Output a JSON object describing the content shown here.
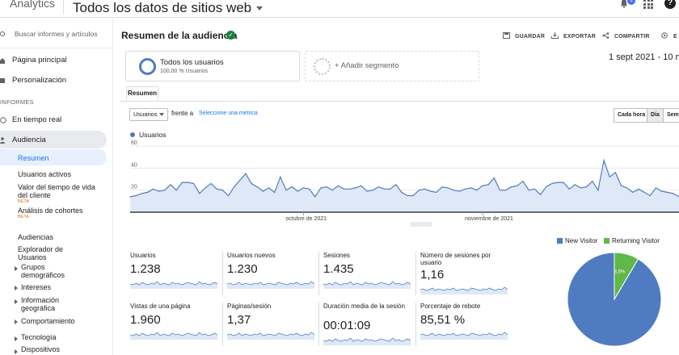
{
  "topbar": {
    "app_name": "Analytics",
    "property": "Todos los datos de sitios web",
    "notification_count": "1",
    "help_symbol": "?"
  },
  "sidebar": {
    "search_placeholder": "Buscar informes y artículos",
    "home": "Página principal",
    "customization": "Personalización",
    "section_reports": "INFORMES",
    "realtime": "En tiempo real",
    "audience": "Audiencia",
    "sub_items": {
      "overview": "Resumen",
      "active_users": "Usuarios activos",
      "lifetime_value": "Valor del tiempo de vida del cliente",
      "cohort": "Análisis de cohortes",
      "audiences": "Audiencias",
      "user_explorer": "Explorador de Usuarios",
      "demographics": "Grupos demográficos",
      "interests": "Intereses",
      "geo": "Información geográfica",
      "behavior": "Comportamiento",
      "technology": "Tecnología",
      "devices": "Dispositivos"
    },
    "beta_label": "BETA"
  },
  "header": {
    "title": "Resumen de la audiencia",
    "save": "GUARDAR",
    "export": "EXPORTAR",
    "share": "COMPARTIR",
    "insights": "E",
    "date_range": "1 sept 2021 - 10 nov"
  },
  "segments": {
    "all_users_title": "Todos los usuarios",
    "all_users_sub": "100,00 % Usuarios",
    "add_segment": "+ Añadir segmento"
  },
  "tabs": {
    "overview": "Resumen"
  },
  "controls": {
    "metric": "Usuarios",
    "versus": "frente a",
    "select_metric": "Seleccione una métrica",
    "granularity": [
      "Cada hora",
      "Día",
      "Sema"
    ],
    "granularity_selected": "Día"
  },
  "chart_data": {
    "type": "line",
    "series": [
      {
        "name": "Usuarios",
        "values": [
          14,
          15,
          17,
          18,
          21,
          19,
          20,
          25,
          20,
          27,
          27,
          26,
          17,
          22,
          26,
          21,
          20,
          15,
          23,
          29,
          35,
          26,
          23,
          19,
          22,
          18,
          32,
          20,
          23,
          19,
          22,
          21,
          14,
          22,
          23,
          20,
          24,
          21,
          21,
          22,
          24,
          19,
          20,
          23,
          21,
          21,
          25,
          18,
          15,
          15,
          20,
          21,
          19,
          18,
          23,
          22,
          20,
          19,
          21,
          22,
          20,
          24,
          25,
          31,
          20,
          20,
          23,
          24,
          28,
          20,
          21,
          16,
          23,
          26,
          27,
          27,
          21,
          25,
          22,
          23,
          28,
          20,
          47,
          32,
          36,
          24,
          22,
          18,
          21,
          18,
          15,
          22,
          19,
          18,
          17,
          14
        ]
      }
    ],
    "y_ticks": [
      "60",
      "40",
      "20"
    ],
    "ylim": [
      0,
      60
    ],
    "x_tick_labels": [
      "octubre de 2021",
      "noviembre de 2021"
    ],
    "color": "#4f7cc0"
  },
  "scorecards": [
    {
      "label": "Usuarios",
      "value": "1.238"
    },
    {
      "label": "Usuarios nuevos",
      "value": "1.230"
    },
    {
      "label": "Sesiones",
      "value": "1.435"
    },
    {
      "label": "Número de sesiones por usuario",
      "value": "1,16"
    },
    {
      "label": "Vistas de una página",
      "value": "1.960"
    },
    {
      "label": "Páginas/sesión",
      "value": "1,37"
    },
    {
      "label": "Duración media de la sesión",
      "value": "00:01:09"
    },
    {
      "label": "Porcentaje de rebote",
      "value": "85,51 %"
    }
  ],
  "pie": {
    "legend": [
      {
        "name": "New Visitor",
        "color": "#4f7cc0"
      },
      {
        "name": "Returning Visitor",
        "color": "#5fb847"
      }
    ],
    "slices": [
      {
        "name": "New Visitor",
        "value": 91.5,
        "label": "91,5%"
      },
      {
        "name": "Returning Visitor",
        "value": 8.5,
        "label": "8,5%"
      }
    ]
  }
}
